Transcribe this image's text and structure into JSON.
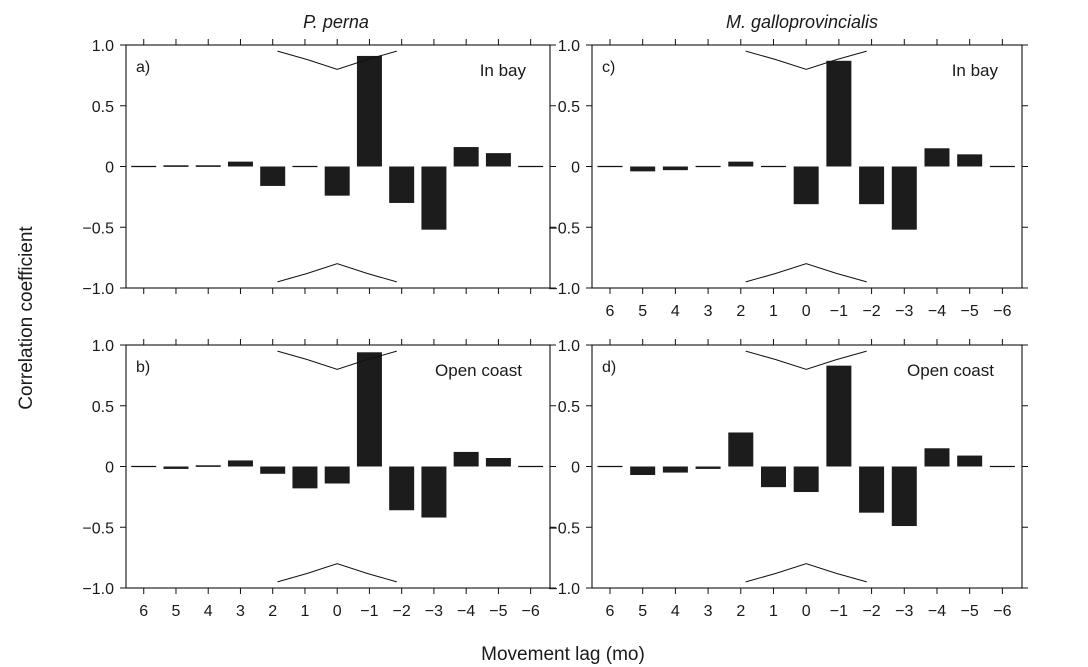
{
  "figure": {
    "ylabel": "Correlation coefficient",
    "xlabel": "Movement lag (mo)",
    "column_titles": [
      "P. perna",
      "M. galloprovincialis"
    ]
  },
  "chart_data": [
    {
      "panel": "a)",
      "column_title": "P. perna",
      "location": "In bay",
      "type": "bar",
      "categories": [
        "6",
        "5",
        "4",
        "3",
        "2",
        "1",
        "0",
        "−1",
        "−2",
        "−3",
        "−4",
        "−5",
        "−6"
      ],
      "values": [
        0,
        0.01,
        0.01,
        0.04,
        -0.16,
        0,
        -0.24,
        0.91,
        -0.3,
        -0.52,
        0.16,
        0.11,
        0
      ],
      "ylim": [
        -1.0,
        1.0
      ],
      "yticks": [
        "−1.0",
        "−0.5",
        "0",
        "0.5",
        "1.0"
      ],
      "confidence_limit": [
        0.95,
        0.88,
        0.8,
        0.88,
        0.95
      ],
      "show_xtick_labels": false
    },
    {
      "panel": "b)",
      "column_title": "P. perna",
      "location": "Open coast",
      "type": "bar",
      "categories": [
        "6",
        "5",
        "4",
        "3",
        "2",
        "1",
        "0",
        "−1",
        "−2",
        "−3",
        "−4",
        "−5",
        "−6"
      ],
      "values": [
        0,
        -0.02,
        0.01,
        0.05,
        -0.06,
        -0.18,
        -0.14,
        0.94,
        -0.36,
        -0.42,
        0.12,
        0.07,
        0
      ],
      "ylim": [
        -1.0,
        1.0
      ],
      "yticks": [
        "−1.0",
        "−0.5",
        "0",
        "0.5",
        "1.0"
      ],
      "confidence_limit": [
        0.95,
        0.88,
        0.8,
        0.88,
        0.95
      ],
      "show_xtick_labels": true
    },
    {
      "panel": "c)",
      "column_title": "M. galloprovincialis",
      "location": "In bay",
      "type": "bar",
      "categories": [
        "6",
        "5",
        "4",
        "3",
        "2",
        "1",
        "0",
        "−1",
        "−2",
        "−3",
        "−4",
        "−5",
        "−6"
      ],
      "values": [
        0,
        -0.04,
        -0.03,
        0,
        0.04,
        0,
        -0.31,
        0.87,
        -0.31,
        -0.52,
        0.15,
        0.1,
        0
      ],
      "ylim": [
        -1.0,
        1.0
      ],
      "yticks": [
        "−1.0",
        "−0.5",
        "0",
        "0.5",
        "1.0"
      ],
      "confidence_limit": [
        0.95,
        0.88,
        0.8,
        0.88,
        0.95
      ],
      "show_xtick_labels": true
    },
    {
      "panel": "d)",
      "column_title": "M. galloprovincialis",
      "location": "Open coast",
      "type": "bar",
      "categories": [
        "6",
        "5",
        "4",
        "3",
        "2",
        "1",
        "0",
        "−1",
        "−2",
        "−3",
        "−4",
        "−5",
        "−6"
      ],
      "values": [
        0,
        -0.07,
        -0.05,
        -0.02,
        0.28,
        -0.17,
        -0.21,
        0.83,
        -0.38,
        -0.49,
        0.15,
        0.09,
        0
      ],
      "ylim": [
        -1.0,
        1.0
      ],
      "yticks": [
        "−1.0",
        "−0.5",
        "0",
        "0.5",
        "1.0"
      ],
      "confidence_limit": [
        0.95,
        0.88,
        0.8,
        0.88,
        0.95
      ],
      "show_xtick_labels": true
    }
  ]
}
